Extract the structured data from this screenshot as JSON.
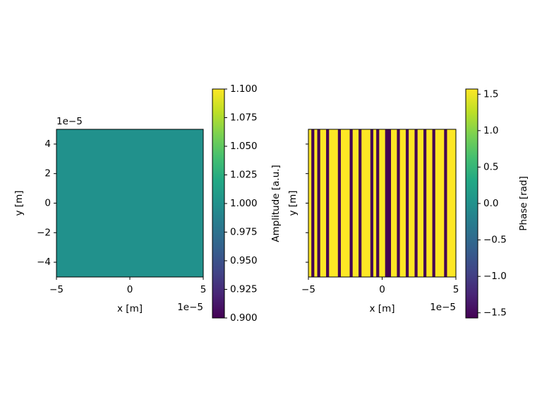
{
  "chart_data": [
    {
      "type": "heatmap",
      "cmap": "viridis",
      "xlabel": "x [m]",
      "ylabel": "y [m]",
      "x_offset_text": "1e−5",
      "y_offset_text": "1e−5",
      "xlim": [
        -5,
        5
      ],
      "ylim": [
        -5,
        5
      ],
      "xticks": [
        {
          "value": -5,
          "label": "−5"
        },
        0,
        5
      ],
      "yticks": [
        {
          "value": -4,
          "label": "−4"
        },
        {
          "value": -2,
          "label": "−2"
        },
        0,
        2,
        4
      ],
      "show_ytick_labels": true,
      "z": [
        [
          1.0
        ]
      ],
      "colorbar": {
        "label": "Amplitude [a.u.]",
        "lim": [
          0.9,
          1.1
        ],
        "ticks": [
          {
            "value": 0.9,
            "label": "0.900"
          },
          0.925,
          {
            "value": 0.95,
            "label": "0.950"
          },
          0.975,
          {
            "value": 1.0,
            "label": "1.000"
          },
          1.025,
          {
            "value": 1.05,
            "label": "1.050"
          },
          1.075,
          {
            "value": 1.1,
            "label": "1.100"
          }
        ]
      }
    },
    {
      "type": "heatmap",
      "cmap": "viridis",
      "xlabel": "x [m]",
      "ylabel": "y [m]",
      "x_offset_text": "1e−5",
      "xlim": [
        -5,
        5
      ],
      "ylim": [
        -5,
        5
      ],
      "xticks": [
        {
          "value": -5,
          "label": "−5"
        },
        0,
        5
      ],
      "yticks": [
        -4,
        -2,
        0,
        2,
        4
      ],
      "show_ytick_labels": false,
      "z": [
        [
          1.5708,
          -1.5708,
          1.5708,
          -1.5708,
          1.5708,
          1.5708,
          -1.5708,
          1.5708,
          1.5708,
          1.5708,
          -1.5708,
          1.5708,
          1.5708,
          1.5708,
          -1.5708,
          1.5708,
          1.5708,
          -1.5708,
          1.5708,
          1.5708,
          1.5708,
          -1.5708,
          1.5708,
          -1.5708,
          1.5708,
          1.5708,
          -1.5708,
          -1.5708,
          1.5708,
          1.5708,
          -1.5708,
          1.5708,
          1.5708,
          -1.5708,
          1.5708,
          1.5708,
          -1.5708,
          1.5708,
          1.5708,
          -1.5708,
          1.5708,
          1.5708,
          -1.5708,
          1.5708,
          1.5708,
          1.5708,
          -1.5708,
          1.5708,
          1.5708,
          1.5708
        ]
      ],
      "colorbar": {
        "label": "Phase [rad]",
        "lim": [
          -1.5708,
          1.5708
        ],
        "ticks": [
          {
            "value": -1.5,
            "label": "−1.5"
          },
          {
            "value": -1.0,
            "label": "−1.0"
          },
          {
            "value": -0.5,
            "label": "−0.5"
          },
          {
            "value": 0.0,
            "label": "0.0"
          },
          0.5,
          {
            "value": 1.0,
            "label": "1.0"
          },
          1.5
        ]
      }
    }
  ]
}
